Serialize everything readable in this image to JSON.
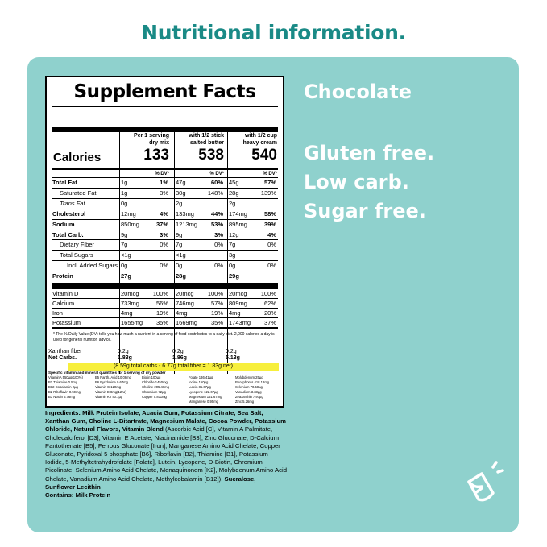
{
  "page_title": "Nutritional information.",
  "flavor": "Chocolate",
  "claims": [
    "Gluten free.",
    "Low carb.",
    "Sugar free."
  ],
  "label": {
    "title": "Supplement Facts",
    "columns": [
      {
        "line1": "Per 1 serving",
        "line2": "dry mix",
        "calories": "133"
      },
      {
        "line1": "with 1/2 stick",
        "line2": "salted butter",
        "calories": "538"
      },
      {
        "line1": "with 1/2 cup",
        "line2": "heavy cream",
        "calories": "540"
      }
    ],
    "calories_label": "Calories",
    "dv_label": "% DV*",
    "rows": [
      {
        "name": "Total Fat",
        "bold": true,
        "indent": 0,
        "v": [
          "1g",
          "47g",
          "45g"
        ],
        "p": [
          "1%",
          "60%",
          "57%"
        ]
      },
      {
        "name": "Saturated Fat",
        "bold": false,
        "indent": 1,
        "v": [
          "1g",
          "30g",
          "28g"
        ],
        "p": [
          "3%",
          "148%",
          "139%"
        ]
      },
      {
        "name": "Trans Fat",
        "bold": false,
        "indent": 1,
        "italic": true,
        "v": [
          "0g",
          "2g",
          "2g"
        ],
        "p": [
          "",
          "",
          ""
        ]
      },
      {
        "name": "Cholesterol",
        "bold": true,
        "indent": 0,
        "v": [
          "12mg",
          "133mg",
          "174mg"
        ],
        "p": [
          "4%",
          "44%",
          "58%"
        ]
      },
      {
        "name": "Sodium",
        "bold": true,
        "indent": 0,
        "v": [
          "850mg",
          "1213mg",
          "895mg"
        ],
        "p": [
          "37%",
          "53%",
          "39%"
        ]
      },
      {
        "name": "Total Carb.",
        "bold": true,
        "indent": 0,
        "v": [
          "9g",
          "9g",
          "12g"
        ],
        "p": [
          "3%",
          "3%",
          "4%"
        ]
      },
      {
        "name": "Dietary Fiber",
        "bold": false,
        "indent": 1,
        "v": [
          "7g",
          "7g",
          "7g"
        ],
        "p": [
          "0%",
          "0%",
          "0%"
        ]
      },
      {
        "name": "Total Sugars",
        "bold": false,
        "indent": 1,
        "v": [
          "<1g",
          "<1g",
          "3g"
        ],
        "p": [
          "",
          "",
          ""
        ]
      },
      {
        "name": "Incl. Added Sugars",
        "bold": false,
        "indent": 2,
        "v": [
          "0g",
          "0g",
          "0g"
        ],
        "p": [
          "0%",
          "0%",
          "0%"
        ]
      },
      {
        "name": "Protein",
        "bold": true,
        "indent": 0,
        "v": [
          "27g",
          "28g",
          "29g"
        ],
        "p": [
          "",
          "",
          ""
        ]
      }
    ],
    "vitamins": [
      {
        "name": "Vitamin D",
        "v": [
          "20mcg",
          "20mcg",
          "20mcg"
        ],
        "p": [
          "100%",
          "100%",
          "100%"
        ]
      },
      {
        "name": "Calcium",
        "v": [
          "733mg",
          "746mg",
          "809mg"
        ],
        "p": [
          "56%",
          "57%",
          "62%"
        ]
      },
      {
        "name": "Iron",
        "v": [
          "4mg",
          "4mg",
          "4mg"
        ],
        "p": [
          "19%",
          "19%",
          "20%"
        ]
      },
      {
        "name": "Potassium",
        "v": [
          "1655mg",
          "1669mg",
          "1743mg"
        ],
        "p": [
          "35%",
          "35%",
          "37%"
        ]
      }
    ],
    "footnote": "* The % Daily Value (DV) tells you how much a nutrient in a serving of food contributes to a daily diet. 2,000 calories a day is used for general nutrition advice.",
    "xanthan": {
      "name": "Xanthan fiber",
      "v": [
        "0.2g",
        "0.2g",
        "0.2g"
      ]
    },
    "net_carbs": {
      "name": "Net Carbs.",
      "v": [
        "1.83g",
        "1.86g",
        "5.13g"
      ]
    },
    "net_note": "(8.59g total carbs - 6.77g total fiber = 1.83g net)",
    "vitamin_header": "Specific vitamin and mineral quantities for 1 serving of dry powder",
    "vitamin_cols": [
      [
        "VitaminA 550µg(100%)",
        "B1 Thiamine 0.5mg",
        "B12 Cobalamin 2µg",
        "B2 Riboflavin 0.59mg",
        "B3 Niacin 6.76mg"
      ],
      [
        "B5 Panth. Acid 10.08mg",
        "B6 Pyridoxine 0.67mg",
        "Vitamin C 120mg",
        "Vitamin E 8mg(12IU)",
        "Vitamin K2 40.1µg"
      ],
      [
        "Biotin 100µg",
        "Chloride 1450mg",
        "Choline 205.46mg",
        "Chromium 72µg",
        "Copper 0.811mg"
      ],
      [
        "Folate 136.41µg",
        "Iodine 150µg",
        "Lutein 85.67µg",
        "Lycopene 122.67µg",
        "Magnesium 151.67mg",
        "Manganese 0.95mg"
      ],
      [
        "Molybdenum 25µg",
        "Phosphorus 418.12mg",
        "Selenium 70.58µg",
        "Vanadium 3.33µg",
        "Zeaxanthin 7.97µg",
        "Zinc 5.26mg"
      ]
    ]
  },
  "ingredients": {
    "label": "Ingredients:",
    "bold_text": "Milk Protein Isolate, Acacia Gum, Potassium Citrate, Sea Salt, Xanthan Gum, Choline L-Bitartrate, Magnesium Malate, Cocoa Powder, Potassium Chloride, Natural Flavors, Vitamin Blend",
    "blend_text": "(Ascorbic Acid [C], Vitamin A Palmitate, Cholecalciferol [D3], Vitamin E Acetate, Niacinamide [B3], Zinc Gluconate, D-Calcium Pantothenate [B5], Ferrous Gluconate [Iron], Manganese Amino Acid Chelate, Copper Gluconate, Pyridoxal 5 phosphate [B6], Riboflavin [B2], Thiamine [B1], Potassium Iodide, 5-Methyltetrahydrofolate [Folate], Lutein, Lycopene, D-Biotin, Chromium Picolinate, Selenium Amino Acid Chelate, Menaquinonem [K2], Molybdenum Amino Acid Chelate, Vanadium Amino Acid Chelate, Methylcobalamin [B12]),",
    "tail_text": "Sucralose, Sunflower Lecithin",
    "contains": "Contains: Milk Protein"
  },
  "colors": {
    "accent": "#1a8a86",
    "panel": "#8fd1cd",
    "highlight": "#f7ef3c"
  },
  "icons": {
    "cup": "shaker-cup-icon"
  }
}
